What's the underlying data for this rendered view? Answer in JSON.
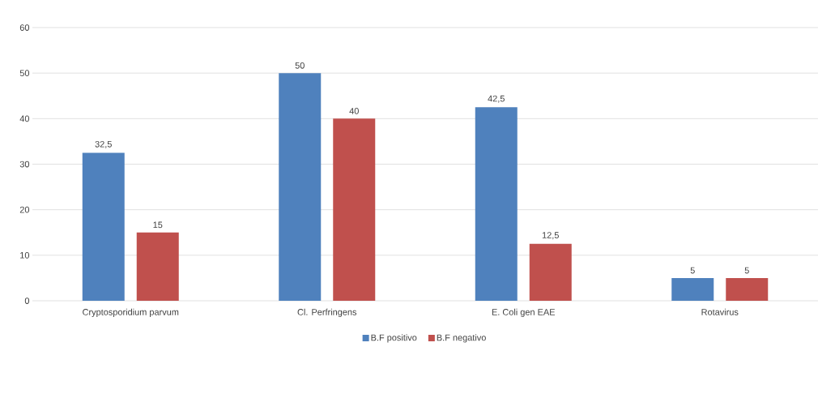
{
  "chart_data": {
    "type": "bar",
    "categories": [
      "Cryptosporidium parvum",
      "Cl. Perfringens",
      "E. Coli gen EAE",
      "Rotavirus"
    ],
    "series": [
      {
        "name": "B.F positivo",
        "color": "#4f81bd",
        "values": [
          32.5,
          50,
          42.5,
          5
        ],
        "value_labels": [
          "32,5",
          "50",
          "42,5",
          "5"
        ]
      },
      {
        "name": "B.F negativo",
        "color": "#c0504d",
        "values": [
          15,
          40,
          12.5,
          5
        ],
        "value_labels": [
          "15",
          "40",
          "12,5",
          "5"
        ]
      }
    ],
    "ylim": [
      0,
      60
    ],
    "yticks": [
      0,
      10,
      20,
      30,
      40,
      50,
      60
    ],
    "grid": "y",
    "legend": "bottom"
  }
}
